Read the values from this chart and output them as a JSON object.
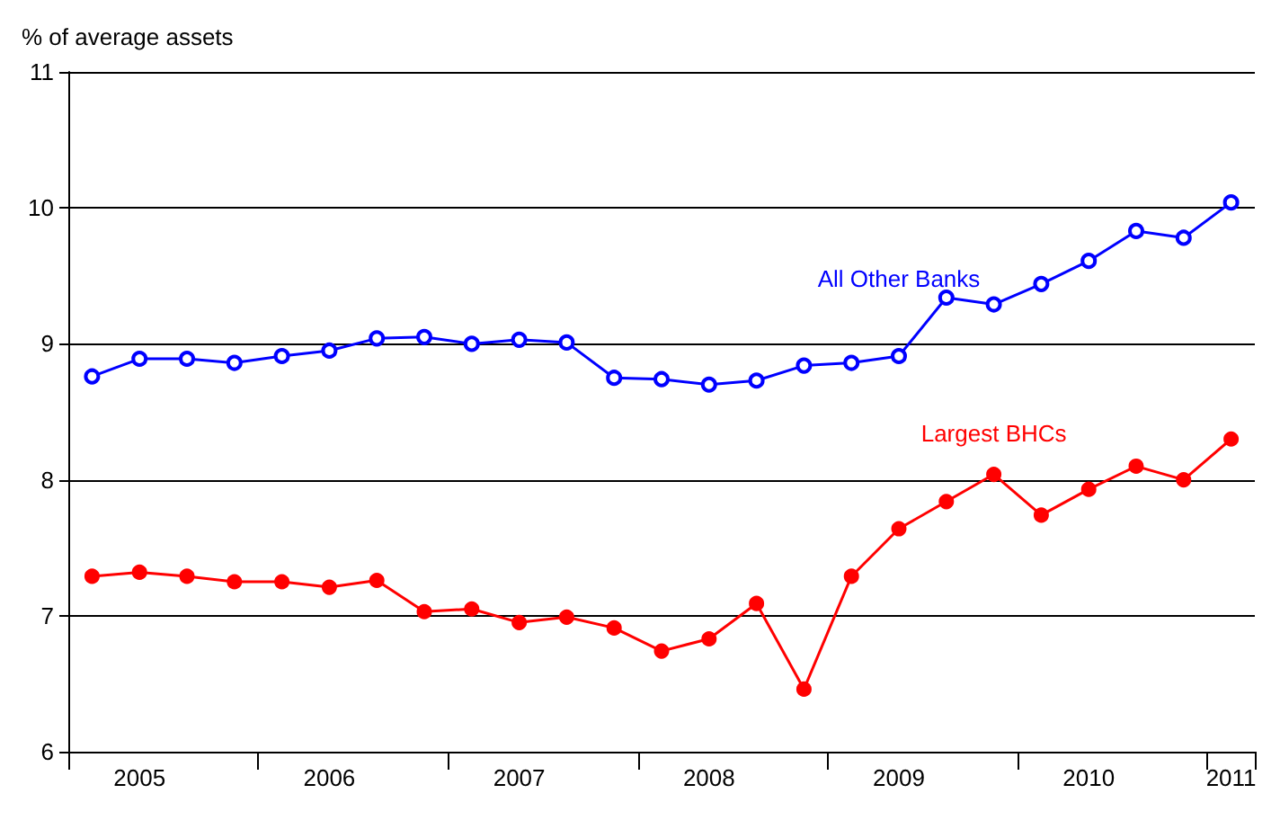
{
  "chart_data": {
    "type": "line",
    "ylabel": "% of average assets",
    "categories": [
      null,
      "2005",
      null,
      null,
      null,
      "2006",
      null,
      null,
      null,
      "2007",
      null,
      null,
      null,
      "2008",
      null,
      null,
      null,
      "2009",
      null,
      null,
      null,
      "2010",
      null,
      null,
      "2011"
    ],
    "series": [
      {
        "name": "All Other Banks",
        "color": "#0000ff",
        "values": [
          8.76,
          8.89,
          8.89,
          8.86,
          8.91,
          8.95,
          9.04,
          9.05,
          9.0,
          9.03,
          9.01,
          8.75,
          8.74,
          8.7,
          8.73,
          8.84,
          8.86,
          8.91,
          9.34,
          9.29,
          9.44,
          9.61,
          9.83,
          9.78,
          10.04
        ]
      },
      {
        "name": "Largest BHCs",
        "color": "#ff0000",
        "values": [
          7.29,
          7.32,
          7.29,
          7.25,
          7.25,
          7.21,
          7.26,
          7.03,
          7.05,
          6.95,
          6.99,
          6.91,
          6.74,
          6.83,
          7.09,
          6.46,
          7.29,
          7.64,
          7.84,
          8.04,
          7.74,
          7.93,
          8.1,
          8.0,
          8.3
        ]
      }
    ],
    "ylim": [
      6,
      11
    ],
    "yticks": [
      6,
      7,
      8,
      9,
      10,
      11
    ],
    "grid": "y",
    "legend": false,
    "marker": "circle",
    "line_style": "solid"
  }
}
